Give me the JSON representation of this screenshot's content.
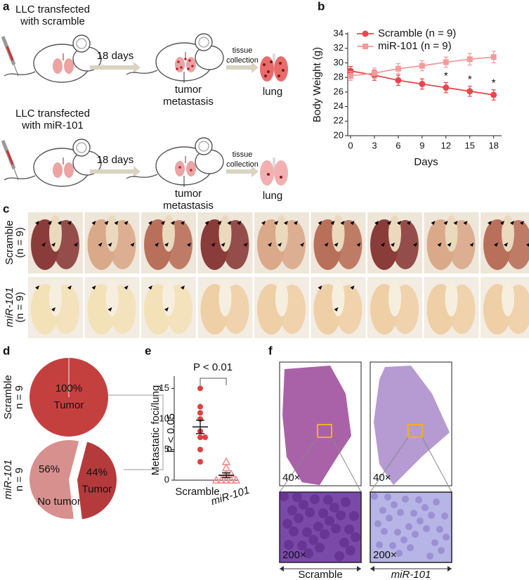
{
  "panel_labels": [
    "a",
    "b",
    "c",
    "d",
    "e",
    "f"
  ],
  "panel_a": {
    "rows": [
      {
        "condition": [
          "LLC transfected",
          "with scramble"
        ],
        "interval": "18 days",
        "step": [
          "tissue",
          "collection"
        ],
        "finding": [
          "tumor",
          "metastasis"
        ],
        "organ": "lung"
      },
      {
        "condition": [
          "LLC transfected",
          "with miR-101"
        ],
        "interval": "18 days",
        "step": [
          "tissue",
          "collection"
        ],
        "finding": [
          "tumor",
          "metastasis"
        ],
        "organ": "lung"
      }
    ]
  },
  "chart_data": [
    {
      "type": "line",
      "ylabel": "Body Weight (g)",
      "xlabel": "Days",
      "x": [
        0,
        3,
        6,
        9,
        12,
        15,
        18
      ],
      "xlim": [
        0,
        19
      ],
      "xticks": [
        0,
        3,
        6,
        9,
        12,
        15,
        18
      ],
      "ylim": [
        20,
        34
      ],
      "yticks": [
        20,
        22,
        24,
        26,
        28,
        30,
        32,
        34
      ],
      "legend": "upper right",
      "series": [
        {
          "name": "Scramble (n = 9)",
          "color": "#e8474b",
          "marker": "circle",
          "values": [
            28.9,
            28.3,
            27.6,
            27.1,
            26.6,
            26.1,
            25.6
          ],
          "errors": [
            0.6,
            0.7,
            0.7,
            0.7,
            0.7,
            0.7,
            0.7
          ]
        },
        {
          "name": "miR-101 (n = 9)",
          "color": "#f59a9a",
          "marker": "square",
          "values": [
            28.2,
            28.6,
            29.2,
            29.6,
            30.1,
            30.5,
            30.8
          ],
          "errors": [
            0.6,
            0.7,
            0.7,
            0.7,
            0.7,
            0.8,
            0.8
          ]
        }
      ],
      "annotations": [
        {
          "x": 12,
          "text": "*"
        },
        {
          "x": 15,
          "text": "*"
        },
        {
          "x": 18,
          "text": "*"
        }
      ]
    },
    {
      "type": "pie",
      "row_label": [
        "Scramble",
        "n = 9"
      ],
      "categories": [
        "Tumor"
      ],
      "values": [
        100
      ],
      "value_labels": [
        "100%"
      ],
      "colors": [
        "#c4403f"
      ]
    },
    {
      "type": "pie",
      "row_label": [
        "miR-101",
        "n = 9"
      ],
      "categories": [
        "No tumor",
        "Tumor"
      ],
      "values": [
        56,
        44
      ],
      "value_labels": [
        "56%",
        "44%"
      ],
      "colors": [
        "#d8908e",
        "#b53a3b"
      ]
    },
    {
      "type": "strip",
      "ylabel": "Metastatic foci/lung",
      "ylim": [
        0,
        17
      ],
      "yticks": [
        0,
        5,
        10,
        15
      ],
      "annotation": "P < 0.01",
      "series": [
        {
          "name": "Scramble",
          "color": "#e0403f",
          "marker": "circle",
          "values": [
            15,
            12,
            11,
            10,
            8,
            7,
            7,
            5,
            3
          ],
          "mean": 8.7,
          "sem": 1.1
        },
        {
          "name": "miR-101",
          "color": "#f08a8a",
          "marker": "triangle",
          "values": [
            3,
            2,
            1,
            1,
            0,
            0,
            0,
            0,
            0
          ],
          "mean": 0.8,
          "sem": 0.4
        }
      ]
    }
  ],
  "panel_c": {
    "rows": [
      {
        "label": [
          "Scramble",
          "(n = 9)"
        ]
      },
      {
        "label": [
          "miR-101",
          "(n = 9)"
        ]
      }
    ]
  },
  "panel_d": {
    "annotation": "P < 0.05"
  },
  "panel_f": {
    "magnifications": [
      "40×",
      "200×"
    ],
    "groups": [
      "Scramble",
      "miR-101"
    ]
  }
}
